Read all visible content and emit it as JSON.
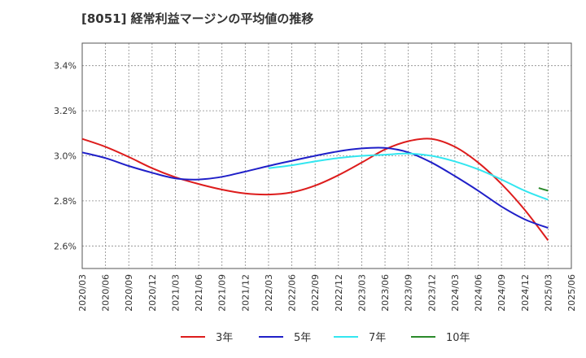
{
  "chart_data": {
    "type": "line",
    "title": "[8051]  経常利益マージンの平均値の推移",
    "xlabel": "",
    "ylabel": "",
    "ylim": [
      2.5,
      3.5
    ],
    "yticks": [
      {
        "value": 2.6,
        "label": "2.6%"
      },
      {
        "value": 2.8,
        "label": "2.8%"
      },
      {
        "value": 3.0,
        "label": "3.0%"
      },
      {
        "value": 3.2,
        "label": "3.2%"
      },
      {
        "value": 3.4,
        "label": "3.4%"
      }
    ],
    "x_labels": [
      "2020/03",
      "2020/06",
      "2020/09",
      "2020/12",
      "2021/03",
      "2021/06",
      "2021/09",
      "2021/12",
      "2022/03",
      "2022/06",
      "2022/09",
      "2022/12",
      "2023/03",
      "2023/06",
      "2023/09",
      "2023/12",
      "2024/03",
      "2024/06",
      "2024/09",
      "2024/12",
      "2025/03",
      "2025/06"
    ],
    "grid": true,
    "legend_position": "bottom",
    "series": [
      {
        "name": "3年",
        "color": "#dd1c1c",
        "values": [
          3.075,
          3.04,
          2.995,
          2.945,
          2.905,
          2.875,
          2.85,
          2.833,
          2.828,
          2.838,
          2.868,
          2.914,
          2.97,
          3.028,
          3.065,
          3.075,
          3.04,
          2.97,
          2.875,
          2.76,
          2.625,
          null
        ]
      },
      {
        "name": "5年",
        "color": "#1f1fc8",
        "values": [
          3.015,
          2.99,
          2.955,
          2.925,
          2.9,
          2.895,
          2.907,
          2.93,
          2.955,
          2.978,
          3.0,
          3.02,
          3.033,
          3.035,
          3.015,
          2.97,
          2.91,
          2.845,
          2.775,
          2.718,
          2.68,
          null
        ]
      },
      {
        "name": "7年",
        "color": "#33e6f0",
        "values": [
          null,
          null,
          null,
          null,
          null,
          null,
          null,
          null,
          2.945,
          2.958,
          2.975,
          2.99,
          3.0,
          3.005,
          3.01,
          3.0,
          2.975,
          2.94,
          2.895,
          2.845,
          2.805,
          null
        ]
      },
      {
        "name": "10年",
        "color": "#2a8a2a",
        "values": [
          null,
          null,
          null,
          null,
          null,
          null,
          null,
          null,
          null,
          null,
          null,
          null,
          null,
          null,
          null,
          null,
          null,
          null,
          null,
          null,
          2.845,
          null
        ]
      }
    ],
    "extra_points": {
      "10年_start": {
        "x_index": 19.6,
        "value": 2.857
      }
    }
  }
}
